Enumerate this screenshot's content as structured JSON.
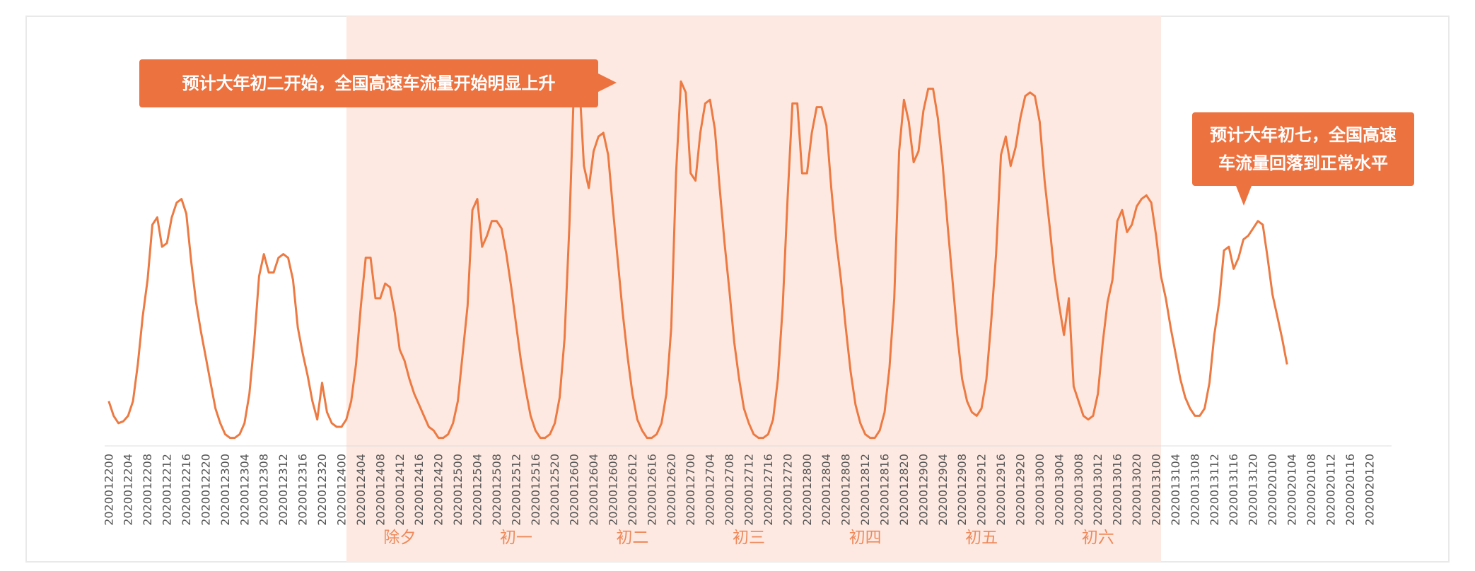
{
  "colors": {
    "line": "#ec7a42",
    "highlight_band": "#fde9e1",
    "callout_bg": "#ec7240",
    "callout_text": "#ffffff",
    "axis_text": "#555555",
    "day_label": "#ee8a5c"
  },
  "callouts": {
    "left": "预计大年初二开始，全国高速车流量开始明显上升",
    "right_line1": "预计大年初七，全国高速",
    "right_line2": "车流量回落到正常水平"
  },
  "chart_data": {
    "type": "line",
    "title": "",
    "xlabel": "",
    "ylabel": "",
    "grid": false,
    "y_axis_labels": false,
    "x_tick_labels": [
      "2020012200",
      "2020012204",
      "2020012208",
      "2020012212",
      "2020012216",
      "2020012220",
      "2020012300",
      "2020012304",
      "2020012308",
      "2020012312",
      "2020012316",
      "2020012320",
      "2020012400",
      "2020012404",
      "2020012408",
      "2020012412",
      "2020012416",
      "2020012420",
      "2020012500",
      "2020012504",
      "2020012508",
      "2020012512",
      "2020012516",
      "2020012520",
      "2020012600",
      "2020012604",
      "2020012608",
      "2020012612",
      "2020012616",
      "2020012620",
      "2020012700",
      "2020012704",
      "2020012708",
      "2020012712",
      "2020012716",
      "2020012720",
      "2020012800",
      "2020012804",
      "2020012808",
      "2020012812",
      "2020012816",
      "2020012820",
      "2020012900",
      "2020012904",
      "2020012908",
      "2020012912",
      "2020012916",
      "2020012920",
      "2020013000",
      "2020013004",
      "2020013008",
      "2020013012",
      "2020013016",
      "2020013020",
      "2020013100",
      "2020013104",
      "2020013108",
      "2020013112",
      "2020013116",
      "2020013120",
      "2020020100",
      "2020020104",
      "2020020108",
      "2020020112",
      "2020020116",
      "2020020120"
    ],
    "highlight_band": {
      "from": "2020012400",
      "to": "2020013100"
    },
    "day_labels": [
      {
        "text": "除夕",
        "at": "2020012412"
      },
      {
        "text": "初一",
        "at": "2020012512"
      },
      {
        "text": "初二",
        "at": "2020012612"
      },
      {
        "text": "初三",
        "at": "2020012712"
      },
      {
        "text": "初四",
        "at": "2020012812"
      },
      {
        "text": "初五",
        "at": "2020012912"
      },
      {
        "text": "初六",
        "at": "2020013012"
      }
    ],
    "series": [
      {
        "values": [
          12,
          8,
          6,
          6.5,
          8,
          12,
          22,
          35,
          45,
          60,
          62,
          54,
          55,
          62,
          66,
          67,
          63,
          50,
          39,
          31,
          24,
          17,
          10,
          6,
          3,
          2,
          2,
          3,
          6,
          14,
          28,
          46,
          52,
          47,
          47,
          51,
          52,
          51,
          45,
          32,
          25,
          19,
          12,
          7,
          17,
          9,
          6,
          5,
          5,
          7,
          12,
          22,
          38,
          51,
          51,
          40,
          40,
          44,
          43,
          36,
          26,
          23,
          18,
          14,
          11,
          8,
          5,
          4,
          2,
          2,
          3,
          6,
          12,
          25,
          38,
          64,
          67,
          54,
          57,
          61,
          61,
          59,
          52,
          43,
          33,
          23,
          15,
          8,
          4,
          2,
          2,
          3,
          6,
          13,
          29,
          60,
          100,
          100,
          76,
          70,
          80,
          84,
          85,
          79,
          64,
          50,
          36,
          24,
          14,
          7,
          4,
          2,
          2,
          3,
          6,
          14,
          32,
          74,
          99,
          96,
          74,
          72,
          85,
          93,
          94,
          86,
          70,
          55,
          42,
          28,
          18,
          10,
          6,
          3,
          2,
          2,
          3,
          7,
          18,
          38,
          67,
          93,
          93,
          74,
          74,
          85,
          92,
          92,
          87,
          70,
          56,
          45,
          32,
          20,
          11,
          6,
          3,
          2,
          2,
          4,
          9,
          21,
          40,
          80,
          94,
          88,
          77,
          80,
          91,
          97,
          97,
          89,
          76,
          60,
          45,
          30,
          18,
          12,
          9,
          8,
          10,
          18,
          34,
          52,
          79,
          84,
          76,
          81,
          89,
          95,
          96,
          95,
          88,
          72,
          60,
          47,
          38,
          30,
          40,
          16,
          12,
          8,
          7,
          8,
          14,
          28,
          39,
          45,
          61,
          64,
          58,
          60,
          65,
          67,
          68,
          66,
          57,
          46,
          40,
          32,
          25,
          18,
          13,
          10,
          8,
          8,
          10,
          17,
          30,
          39,
          53,
          54,
          48,
          51,
          56,
          57,
          59,
          61,
          60,
          51,
          41,
          35,
          29,
          22
        ]
      }
    ],
    "ylim": [
      0,
      105
    ]
  }
}
